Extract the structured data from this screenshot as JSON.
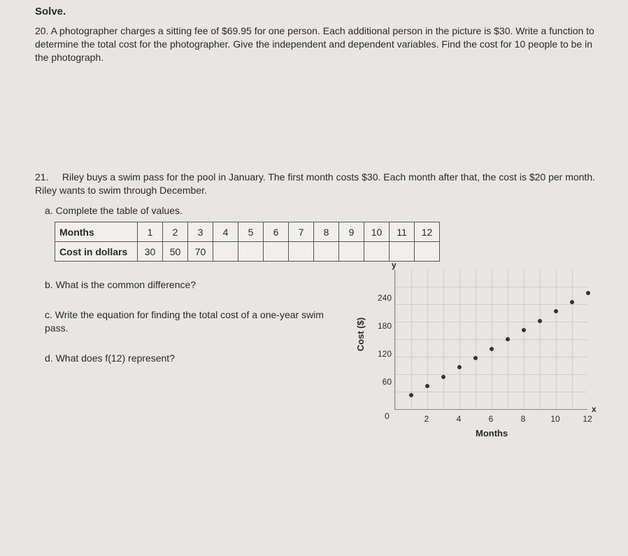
{
  "heading": "Solve.",
  "p20": {
    "num": "20.",
    "text": "A photographer charges a sitting fee of $69.95 for one person. Each additional person in the picture is $30. Write a function to determine the total cost for the photographer.  Give the independent and dependent variables.  Find the cost for 10 people to be in the photograph."
  },
  "p21": {
    "num": "21.",
    "text": "Riley buys a swim pass for the pool in January. The first month costs $30. Each month after that, the cost is $20 per month. Riley wants to swim through December.",
    "a_label": "a.  Complete the table of values.",
    "b_label": "b.  What is the common difference?",
    "c_label": "c.  Write the equation for finding the total cost of a one-year swim pass.",
    "d_label": "d.  What does f(12) represent?"
  },
  "table": {
    "row1_header": "Months",
    "row2_header": "Cost in dollars",
    "months": [
      "1",
      "2",
      "3",
      "4",
      "5",
      "6",
      "7",
      "8",
      "9",
      "10",
      "11",
      "12"
    ],
    "costs": [
      "30",
      "50",
      "70",
      "",
      "",
      "",
      "",
      "",
      "",
      "",
      "",
      ""
    ]
  },
  "chart": {
    "type": "scatter",
    "ylabel": "Cost ($)",
    "xlabel": "Months",
    "y_axis_symbol": "y",
    "x_axis_symbol": "x",
    "zero_label": "0",
    "xlim": [
      0,
      12
    ],
    "ylim": [
      0,
      300
    ],
    "xtick_step": 2,
    "xtick_labels": [
      "2",
      "4",
      "6",
      "8",
      "10",
      "12"
    ],
    "ytick_labels": [
      "60",
      "120",
      "180",
      "240"
    ],
    "ytick_values": [
      60,
      120,
      180,
      240
    ],
    "point_color": "#333333",
    "background_color": "#e8e6e2",
    "grid_color": "rgba(140,140,140,.25)",
    "points_x": [
      1,
      2,
      3,
      4,
      5,
      6,
      7,
      8,
      9,
      10,
      11,
      12
    ],
    "points_y": [
      30,
      50,
      70,
      90,
      110,
      130,
      150,
      170,
      190,
      210,
      230,
      250
    ]
  }
}
